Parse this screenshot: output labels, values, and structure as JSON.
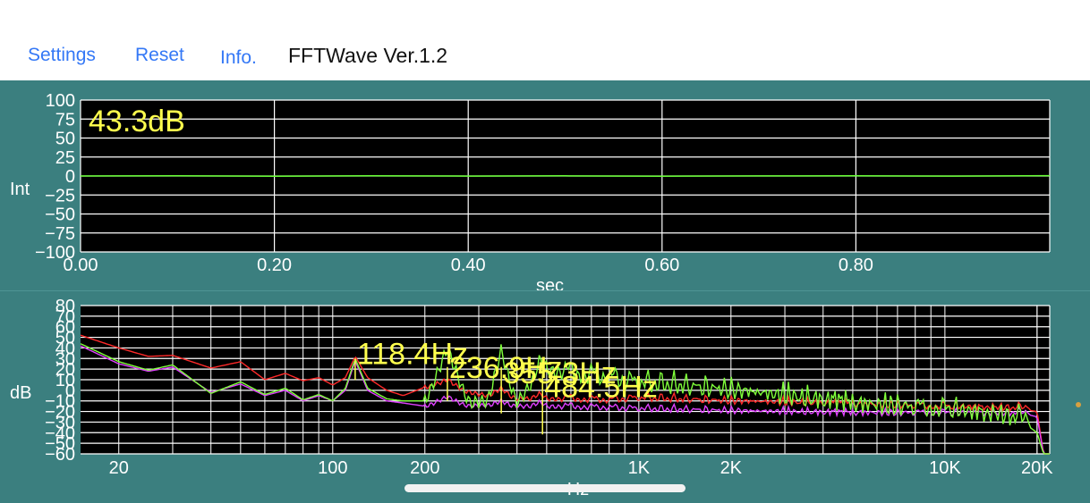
{
  "toolbar": {
    "settings_label": "Settings",
    "reset_label": "Reset",
    "info_label": "Info.",
    "app_title": "FFTWave Ver.1.2"
  },
  "colors": {
    "background": "#3b7f7f",
    "plot_bg": "#000000",
    "grid": "#ffffff",
    "label_yellow": "#ffff4d",
    "waveform": "#66ff33",
    "link_blue": "#3478f6",
    "spectrum_red": "#ff2a2a",
    "spectrum_green": "#7fff3a",
    "spectrum_magenta": "#e040ff"
  },
  "chart_data": [
    {
      "type": "line",
      "name": "waveform",
      "readout": "43.3dB",
      "ylabel": "Int",
      "xlabel": "sec",
      "xlim": [
        0,
        1.0
      ],
      "ylim": [
        -100,
        100
      ],
      "xticks": [
        0.0,
        0.2,
        0.4,
        0.6,
        0.8
      ],
      "xtick_labels": [
        "0.00",
        "0.20",
        "0.40",
        "0.60",
        "0.80"
      ],
      "yticks": [
        100,
        75,
        50,
        25,
        0,
        -25,
        -50,
        -75,
        -100
      ],
      "ytick_labels": [
        "100",
        "75",
        "50",
        "25",
        "0",
        "−25",
        "−50",
        "−75",
        "−100"
      ],
      "grid": true,
      "series": [
        {
          "x": [
            0.0,
            0.1,
            0.2,
            0.3,
            0.4,
            0.5,
            0.6,
            0.7,
            0.8,
            0.9,
            1.0
          ],
          "values": [
            0,
            0.3,
            -0.2,
            0.2,
            -0.1,
            0.2,
            -0.2,
            0.1,
            0.2,
            -0.1,
            0.5
          ]
        }
      ]
    },
    {
      "type": "line",
      "name": "spectrum",
      "xscale": "log",
      "ylabel": "dB",
      "xlabel": "Hz",
      "xlim": [
        15,
        22000
      ],
      "ylim": [
        -60,
        80
      ],
      "xticks": [
        20,
        100,
        200,
        1000,
        2000,
        10000,
        20000
      ],
      "xtick_labels": [
        "20",
        "100",
        "200",
        "1K",
        "2K",
        "10K",
        "20K"
      ],
      "yticks": [
        80,
        70,
        60,
        50,
        40,
        30,
        20,
        10,
        0,
        -10,
        -20,
        -30,
        -40,
        -50,
        -60
      ],
      "ytick_labels": [
        "80",
        "70",
        "60",
        "50",
        "40",
        "30",
        "20",
        "10",
        "0",
        "−10",
        "−20",
        "−30",
        "−40",
        "−50",
        "−60"
      ],
      "grid": true,
      "peaks": [
        {
          "freq": 118.4,
          "label": "118.4Hz",
          "db": 30
        },
        {
          "freq": 236.9,
          "label": "236.9Hz",
          "db": 22
        },
        {
          "freq": 355.3,
          "label": "355.3Hz",
          "db": 22
        },
        {
          "freq": 484.5,
          "label": "484.5Hz",
          "db": 14
        }
      ],
      "fundamental_hz": 118.4,
      "series": [
        {
          "x": [
            15,
            20,
            25,
            30,
            40,
            50,
            60,
            70,
            80,
            90,
            100,
            110,
            118.4,
            130,
            150,
            170,
            200,
            236.9,
            280,
            320,
            355.3,
            400,
            484.5,
            600,
            800,
            1000,
            2000,
            5000,
            10000,
            15000,
            18000,
            20000,
            21000
          ],
          "values": [
            52,
            40,
            32,
            33,
            21,
            27,
            10,
            16,
            9,
            12,
            5,
            12,
            32,
            12,
            0,
            -5,
            3,
            5,
            -2,
            -5,
            -3,
            -8,
            -8,
            -9,
            -10,
            -8,
            -11,
            -14,
            -16,
            -17,
            -18,
            -20,
            -60
          ]
        },
        {
          "x": [
            15,
            20,
            25,
            30,
            40,
            50,
            60,
            70,
            80,
            90,
            100,
            110,
            118.4,
            130,
            150,
            170,
            200,
            236.9,
            280,
            320,
            355.3,
            400,
            484.5,
            600,
            800,
            1000,
            2000,
            5000,
            10000,
            15000,
            18000,
            20000,
            21000
          ],
          "values": [
            42,
            25,
            18,
            22,
            -2,
            6,
            -5,
            0,
            -10,
            -5,
            -10,
            0,
            28,
            0,
            -10,
            -12,
            -15,
            -10,
            -15,
            -14,
            -14,
            -15,
            -15,
            -16,
            -17,
            -18,
            -20,
            -22,
            -22,
            -22,
            -22,
            -25,
            -60
          ]
        },
        {
          "x": [
            15,
            20,
            25,
            30,
            40,
            50,
            60,
            70,
            80,
            90,
            100,
            110,
            118.4,
            130,
            150,
            170,
            200,
            236.9,
            280,
            320,
            355.3,
            400,
            484.5,
            600,
            800,
            1000,
            2000,
            5000,
            10000,
            15000,
            18000,
            20000,
            21000
          ],
          "values": [
            44,
            27,
            19,
            24,
            -3,
            8,
            -4,
            2,
            -9,
            -4,
            -10,
            2,
            30,
            2,
            -8,
            -10,
            -10,
            28,
            -12,
            -10,
            26,
            -12,
            20,
            14,
            10,
            5,
            -2,
            -15,
            -20,
            -25,
            -30,
            -40,
            -60
          ]
        }
      ]
    }
  ]
}
